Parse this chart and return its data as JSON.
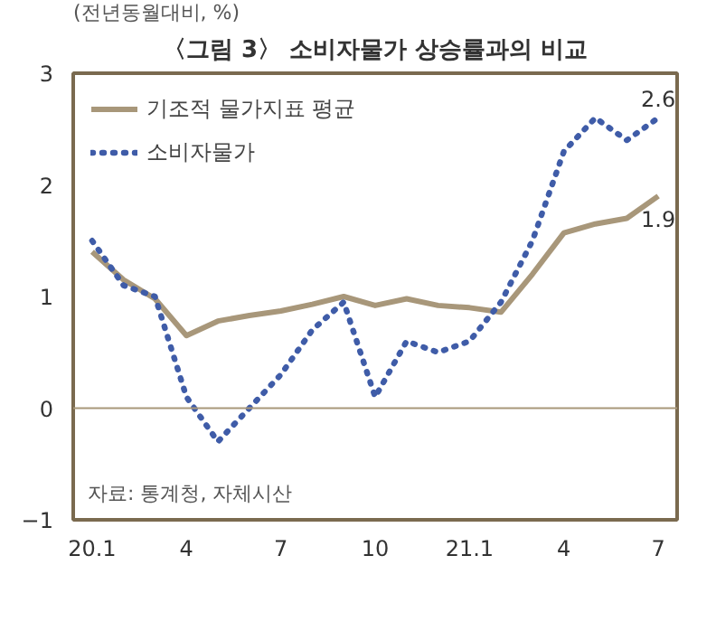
{
  "chart_data": {
    "type": "line",
    "title": "〈그림 3〉 소비자물가 상승률과의 비교",
    "ylabel": "(전년동월대비, %)",
    "categories": [
      "20.1",
      null,
      null,
      "4",
      null,
      null,
      "7",
      null,
      null,
      "10",
      null,
      null,
      "21.1",
      null,
      null,
      "4",
      null,
      null,
      "7"
    ],
    "series": [
      {
        "name": "기조적 물가지표 평균",
        "color": "#a8977a",
        "line_style": "solid",
        "values": [
          1.4,
          1.15,
          0.98,
          0.65,
          0.78,
          0.83,
          0.87,
          0.93,
          1.0,
          0.92,
          0.98,
          0.92,
          0.9,
          0.86,
          1.2,
          1.57,
          1.65,
          1.7,
          1.9
        ],
        "value_labels": [
          null,
          null,
          null,
          null,
          null,
          null,
          null,
          null,
          null,
          null,
          null,
          null,
          null,
          null,
          null,
          null,
          null,
          null,
          "1.9"
        ]
      },
      {
        "name": "소비자물가",
        "color": "#3f5ca8",
        "line_style": "dotted",
        "values": [
          1.5,
          1.1,
          1.0,
          0.1,
          -0.3,
          0.0,
          0.3,
          0.7,
          0.95,
          0.1,
          0.6,
          0.5,
          0.6,
          0.95,
          1.5,
          2.3,
          2.6,
          2.4,
          2.6
        ],
        "value_labels": [
          null,
          null,
          null,
          null,
          null,
          null,
          null,
          null,
          null,
          null,
          null,
          null,
          null,
          null,
          null,
          null,
          null,
          null,
          "2.6"
        ]
      }
    ],
    "ylim": [
      -1,
      3
    ],
    "yticks": [
      {
        "value": -1,
        "label": "−1"
      },
      0,
      1,
      2,
      3
    ],
    "grid": false,
    "legend": "top left",
    "marker": "none",
    "ref_lines": [
      {
        "axis": "y",
        "value": 0,
        "color": "#a8977a",
        "line_style": "solid"
      }
    ],
    "annotations": [
      "자료: 통계청, 자체시산"
    ]
  }
}
